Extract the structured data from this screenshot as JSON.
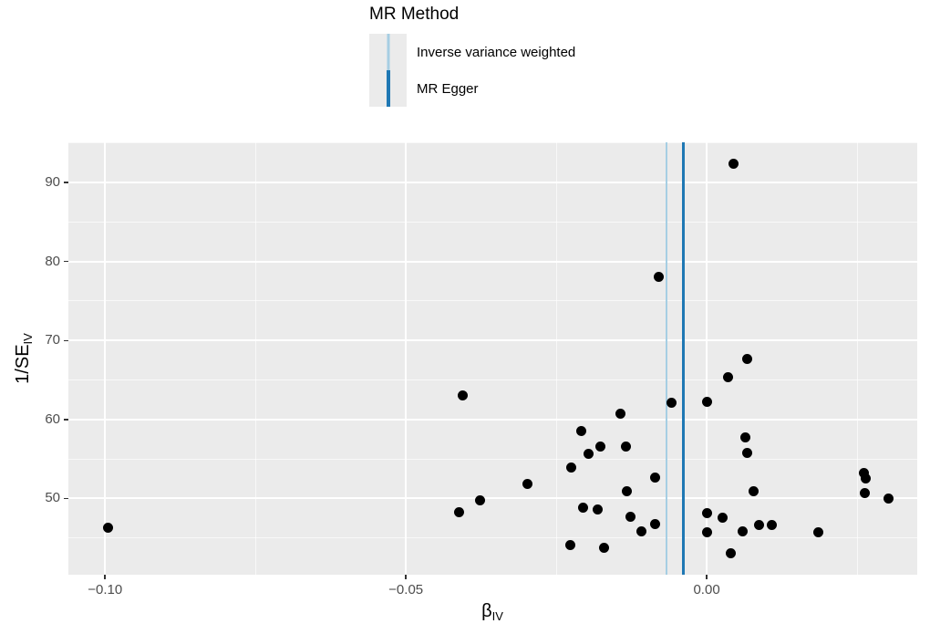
{
  "legend": {
    "title": "MR Method",
    "items": [
      {
        "label": "Inverse variance weighted",
        "color": "#A6CEE3"
      },
      {
        "label": "MR Egger",
        "color": "#1F78B4"
      }
    ]
  },
  "chart_data": {
    "type": "scatter",
    "title": "",
    "xlabel_base": "β",
    "xlabel_sub": "IV",
    "ylabel_base": "1/SE",
    "ylabel_sub": "IV",
    "xlim": [
      -0.1061,
      0.035
    ],
    "ylim": [
      40.36,
      95.08
    ],
    "grid": true,
    "panel_bg": "#EBEBEB",
    "grid_color": "#FFFFFF",
    "point_color": "#000000",
    "tick_label_color": "#4D4D4D",
    "x_ticks": [
      {
        "value": -0.1,
        "label": "−0.10"
      },
      {
        "value": -0.05,
        "label": "−0.05"
      },
      {
        "value": 0.0,
        "label": "0.00"
      }
    ],
    "y_ticks": [
      {
        "value": 50,
        "label": "50"
      },
      {
        "value": 60,
        "label": "60"
      },
      {
        "value": 70,
        "label": "70"
      },
      {
        "value": 80,
        "label": "80"
      },
      {
        "value": 90,
        "label": "90"
      }
    ],
    "x_minor": [
      -0.075,
      -0.025,
      0.025
    ],
    "y_minor": [
      45,
      55,
      65,
      75,
      85,
      95
    ],
    "vlines": [
      {
        "method": "Inverse variance weighted",
        "x": -0.0067,
        "color": "#A6CEE3"
      },
      {
        "method": "MR Egger",
        "x": -0.0039,
        "color": "#1F78B4"
      }
    ],
    "points": [
      [
        0.0044,
        92.4
      ],
      [
        -0.0079,
        78.0
      ],
      [
        0.0067,
        67.7
      ],
      [
        0.0036,
        65.3
      ],
      [
        -0.0405,
        63.0
      ],
      [
        -0.0058,
        62.1
      ],
      [
        0.0,
        62.2
      ],
      [
        -0.0144,
        60.7
      ],
      [
        -0.0209,
        58.6
      ],
      [
        0.0064,
        57.7
      ],
      [
        -0.0176,
        56.6
      ],
      [
        -0.0134,
        56.6
      ],
      [
        0.0067,
        55.8
      ],
      [
        -0.0197,
        55.7
      ],
      [
        -0.0225,
        53.9
      ],
      [
        0.0261,
        53.2
      ],
      [
        -0.0086,
        52.7
      ],
      [
        0.0264,
        52.5
      ],
      [
        -0.0298,
        51.9
      ],
      [
        -0.0132,
        50.9
      ],
      [
        0.0078,
        50.9
      ],
      [
        0.0263,
        50.7
      ],
      [
        0.0302,
        50.0
      ],
      [
        -0.0376,
        49.8
      ],
      [
        -0.0205,
        48.8
      ],
      [
        -0.0181,
        48.6
      ],
      [
        -0.0412,
        48.3
      ],
      [
        0.0,
        48.2
      ],
      [
        -0.0126,
        47.7
      ],
      [
        0.0026,
        47.6
      ],
      [
        -0.0085,
        46.8
      ],
      [
        0.0108,
        46.7
      ],
      [
        0.0087,
        46.6
      ],
      [
        -0.0995,
        46.3
      ],
      [
        -0.0109,
        45.9
      ],
      [
        0.006,
        45.9
      ],
      [
        0.0,
        45.7
      ],
      [
        0.0186,
        45.7
      ],
      [
        -0.0226,
        44.1
      ],
      [
        -0.017,
        43.8
      ],
      [
        0.004,
        43.1
      ]
    ]
  }
}
